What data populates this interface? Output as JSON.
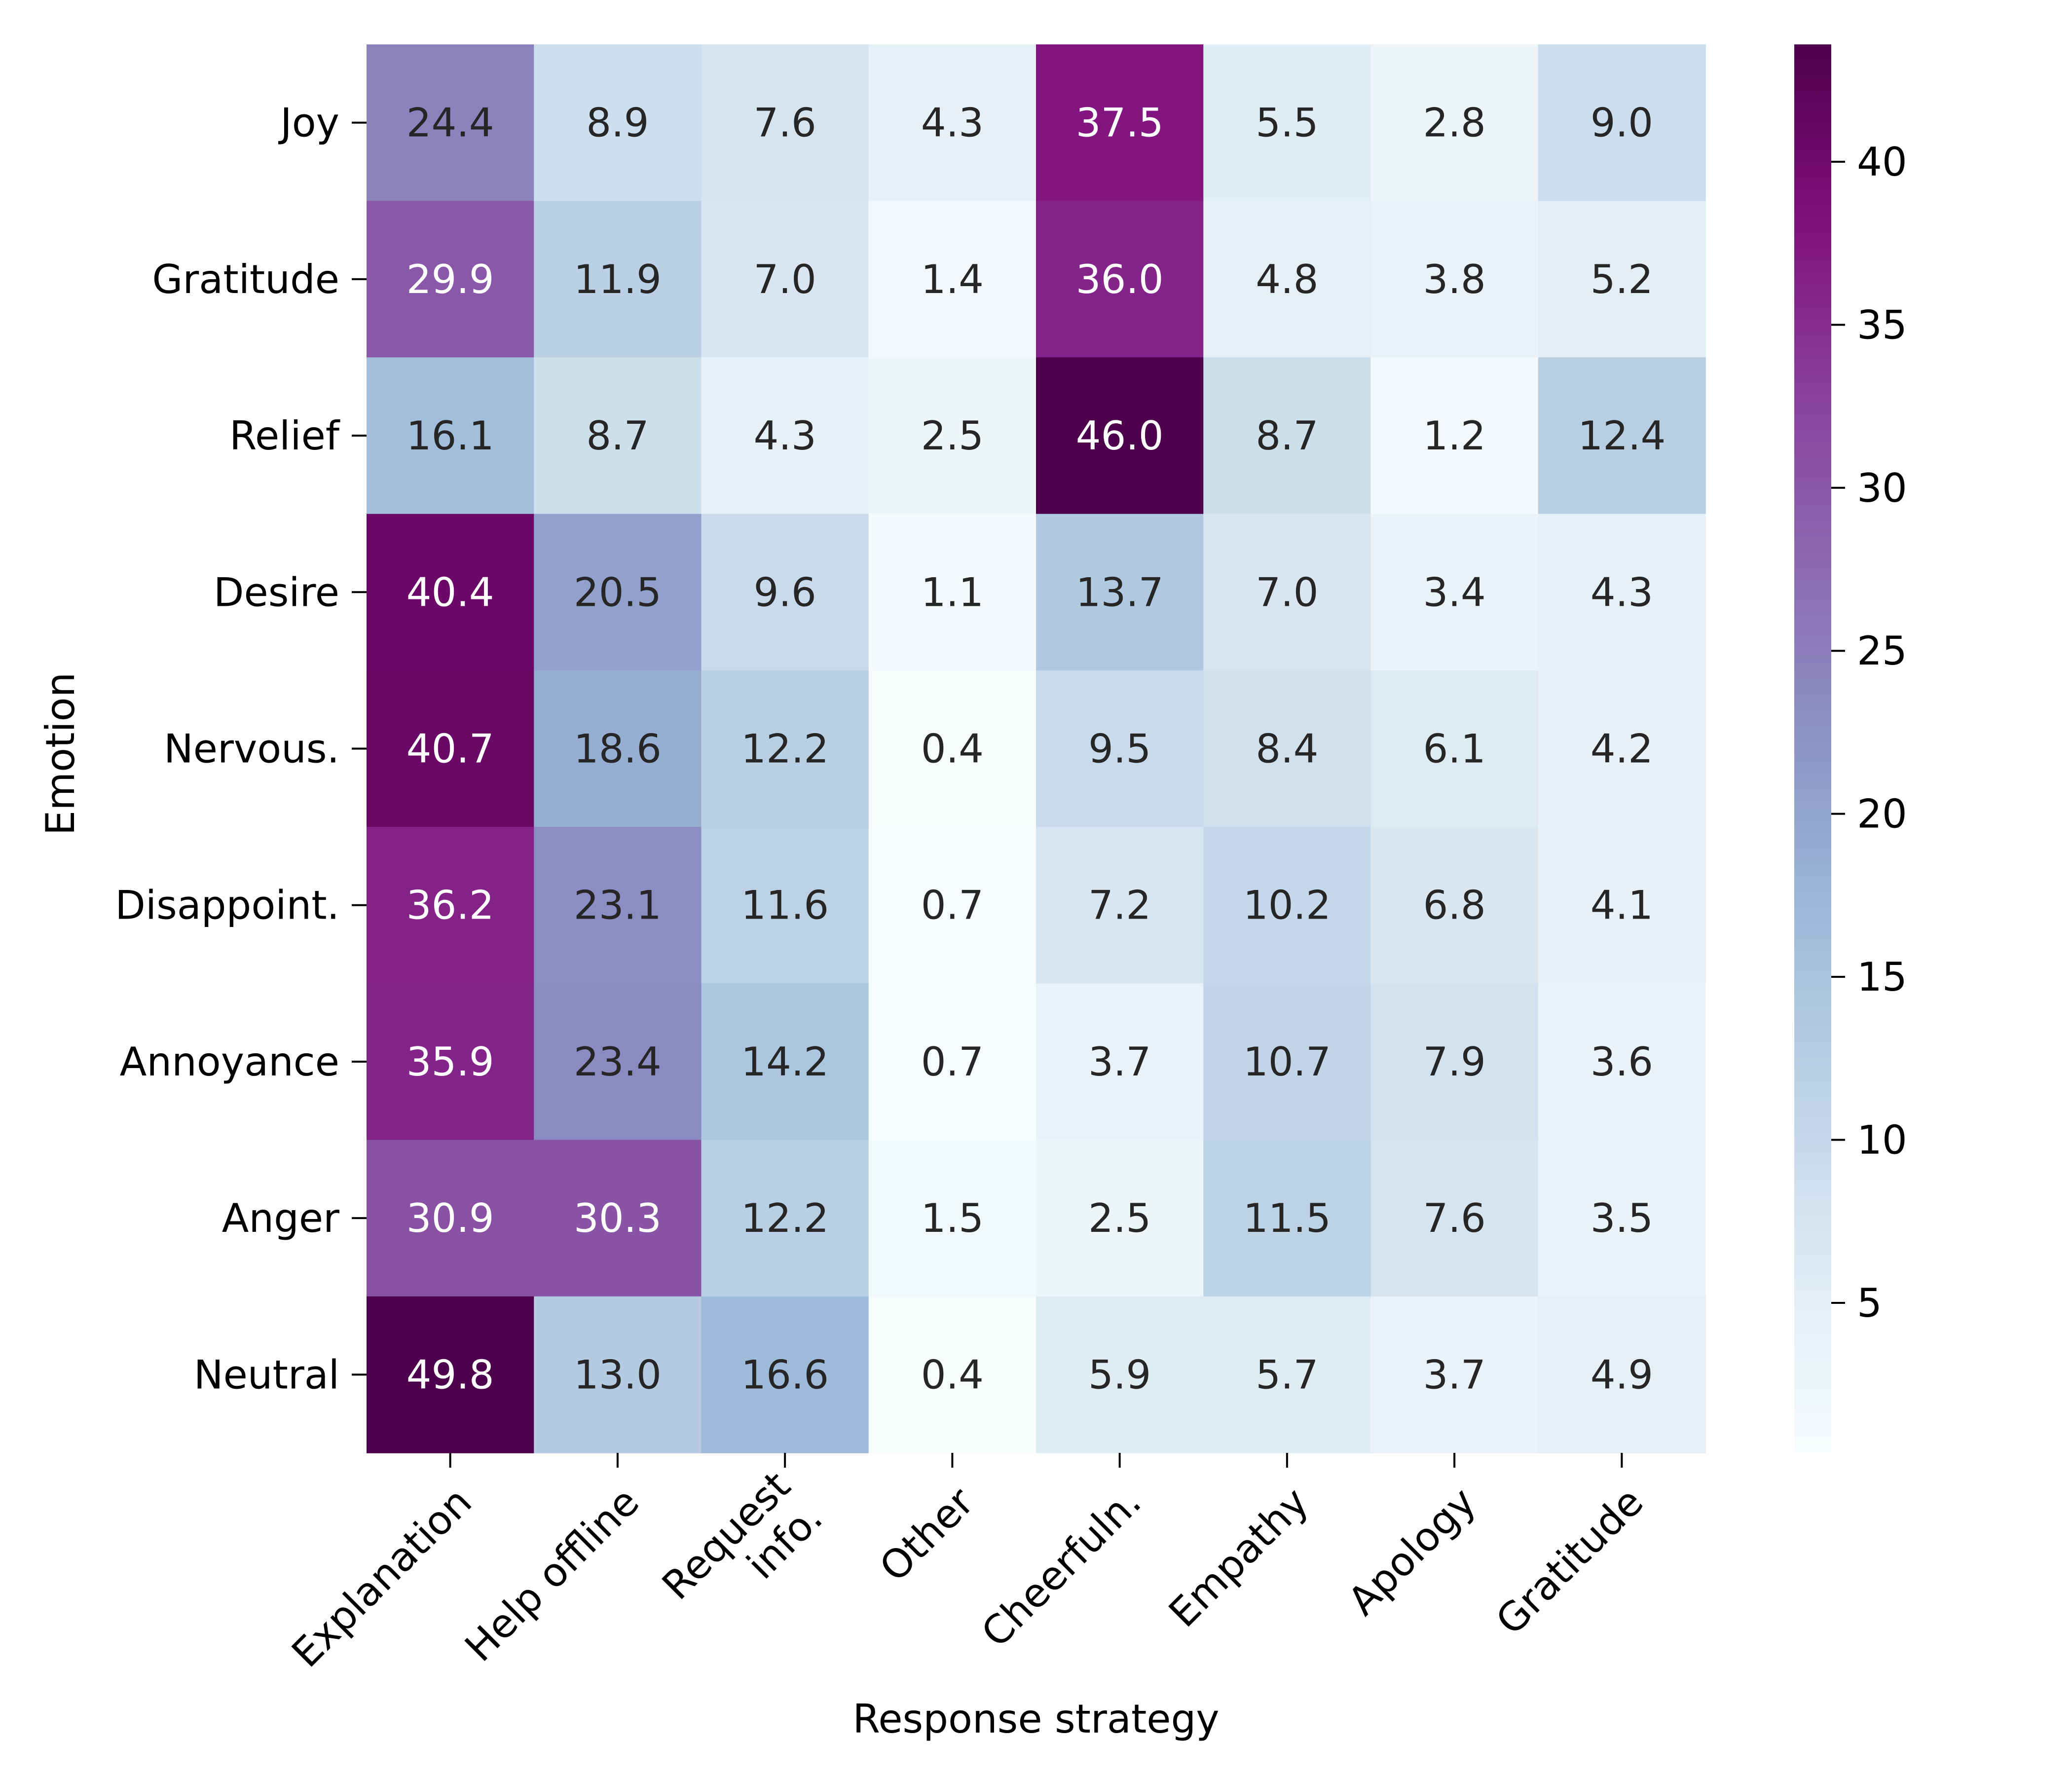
{
  "chart_data": {
    "type": "heatmap",
    "title": "",
    "xlabel": "Response strategy",
    "ylabel": "Emotion",
    "x_categories": [
      [
        "Explanation"
      ],
      [
        "Help offline"
      ],
      [
        "Request",
        "info."
      ],
      [
        "Other"
      ],
      [
        "Cheerfuln."
      ],
      [
        "Empathy"
      ],
      [
        "Apology"
      ],
      [
        "Gratitude"
      ]
    ],
    "y_categories": [
      "Joy",
      "Gratitude",
      "Relief",
      "Desire",
      "Nervous.",
      "Disappoint.",
      "Annoyance",
      "Anger",
      "Neutral"
    ],
    "values": [
      [
        24.4,
        8.9,
        7.6,
        4.3,
        37.5,
        5.5,
        2.8,
        9.0
      ],
      [
        29.9,
        11.9,
        7.0,
        1.4,
        36.0,
        4.8,
        3.8,
        5.2
      ],
      [
        16.1,
        8.7,
        4.3,
        2.5,
        46.0,
        8.7,
        1.2,
        12.4
      ],
      [
        40.4,
        20.5,
        9.6,
        1.1,
        13.7,
        7.0,
        3.4,
        4.3
      ],
      [
        40.7,
        18.6,
        12.2,
        0.4,
        9.5,
        8.4,
        6.1,
        4.2
      ],
      [
        36.2,
        23.1,
        11.6,
        0.7,
        7.2,
        10.2,
        6.8,
        4.1
      ],
      [
        35.9,
        23.4,
        14.2,
        0.7,
        3.7,
        10.7,
        7.9,
        3.6
      ],
      [
        30.9,
        30.3,
        12.2,
        1.5,
        2.5,
        11.5,
        7.6,
        3.5
      ],
      [
        49.8,
        13.0,
        16.6,
        0.4,
        5.9,
        5.7,
        3.7,
        4.9
      ]
    ],
    "value_format": "0.0",
    "colormap": "BuPu",
    "color_range": [
      0.4,
      43.6
    ],
    "colorbar_ticks": [
      5,
      10,
      15,
      20,
      25,
      30,
      35,
      40
    ],
    "colorbar_tick_labels": [
      "5",
      "10",
      "15",
      "20",
      "25",
      "30",
      "35",
      "40"
    ],
    "annotation_colors": {
      "dark_text": "#262626",
      "light_text": "#ffffff"
    },
    "grid": false
  }
}
